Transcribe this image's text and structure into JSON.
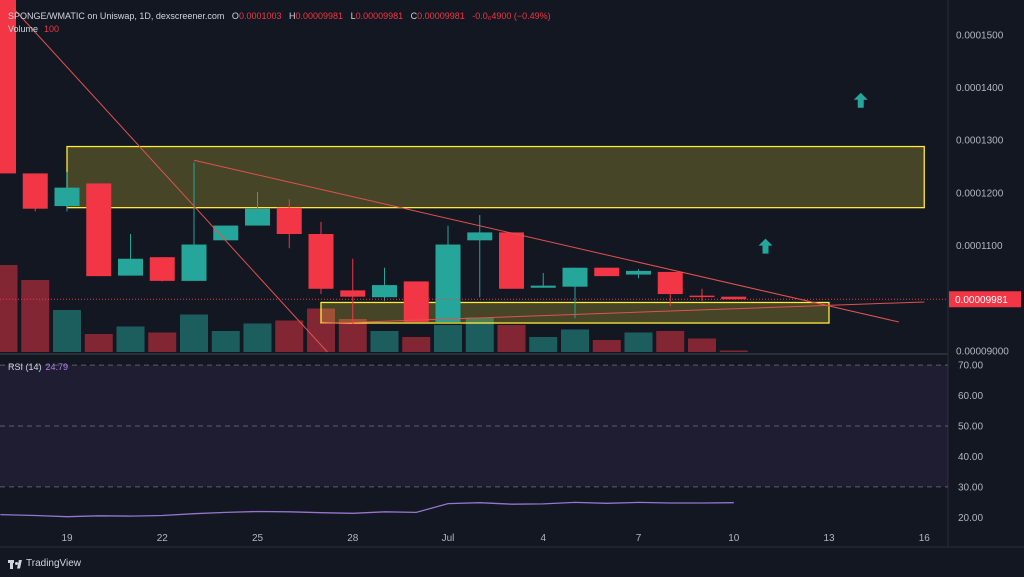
{
  "header": {
    "pair": "SPONGE/WMATIC on Uniswap, 1D, dexscreener.com",
    "open_label": "O",
    "open": "0.0001003",
    "high_label": "H",
    "high": "0.00009981",
    "low_label": "L",
    "low": "0.00009981",
    "close_label": "C",
    "close": "0.00009981",
    "change": "-0.0₆4900 (−0.49%)"
  },
  "volume": {
    "label": "Volume",
    "value": "100"
  },
  "rsi": {
    "label": "RSI (14)",
    "value": "24.79"
  },
  "branding": {
    "text": "TradingView"
  },
  "colors": {
    "up": "#26a69a",
    "down": "#f23645",
    "zone": "#ffeb3b",
    "trendline": "#e0524e",
    "rsi_line": "#9575cd",
    "background": "#131722"
  },
  "chart_data": [
    {
      "type": "candlestick",
      "x_ticks": [
        "19",
        "22",
        "25",
        "28",
        "Jul",
        "4",
        "7",
        "10",
        "13",
        "16"
      ],
      "x_tick_days": [
        19,
        22,
        25,
        28,
        31,
        34,
        37,
        40,
        43,
        46
      ],
      "y_ticks": [
        "0.0001500",
        "0.0001400",
        "0.0001300",
        "0.0001200",
        "0.0001100",
        "0.00009000"
      ],
      "y_tick_values": [
        0.00015,
        0.00014,
        0.00013,
        0.00012,
        0.00011,
        9e-05
      ],
      "ylim": [
        8.98e-05,
        0.0001551
      ],
      "last_price_label": "0.00009981",
      "last_price": 9.981e-05,
      "candles": [
        {
          "day": 17,
          "o": 0.00016,
          "h": 0.00016,
          "l": 0.0001237,
          "c": 0.0001237
        },
        {
          "day": 18,
          "o": 0.0001237,
          "h": 0.0001237,
          "l": 0.0001165,
          "c": 0.000117
        },
        {
          "day": 19,
          "o": 0.0001175,
          "h": 0.000124,
          "l": 0.0001165,
          "c": 0.000121
        },
        {
          "day": 20,
          "o": 0.0001218,
          "h": 0.0001218,
          "l": 0.0001042,
          "c": 0.0001042
        },
        {
          "day": 21,
          "o": 0.0001043,
          "h": 0.0001122,
          "l": 0.0001043,
          "c": 0.0001075
        },
        {
          "day": 22,
          "o": 0.0001078,
          "h": 0.0001078,
          "l": 0.0001032,
          "c": 0.0001033
        },
        {
          "day": 23,
          "o": 0.0001033,
          "h": 0.0001258,
          "l": 0.0001033,
          "c": 0.0001102
        },
        {
          "day": 24,
          "o": 0.000111,
          "h": 0.0001138,
          "l": 0.000111,
          "c": 0.0001138
        },
        {
          "day": 25,
          "o": 0.0001138,
          "h": 0.0001202,
          "l": 0.0001138,
          "c": 0.000117
        },
        {
          "day": 26,
          "o": 0.0001172,
          "h": 0.0001188,
          "l": 0.0001095,
          "c": 0.0001122
        },
        {
          "day": 27,
          "o": 0.0001122,
          "h": 0.0001145,
          "l": 0.0001008,
          "c": 0.0001018
        },
        {
          "day": 28,
          "o": 0.0001015,
          "h": 0.0001075,
          "l": 9.51e-05,
          "c": 0.0001003
        },
        {
          "day": 29,
          "o": 0.0001002,
          "h": 0.0001058,
          "l": 9.95e-05,
          "c": 0.0001025
        },
        {
          "day": 30,
          "o": 0.0001032,
          "h": 0.0001032,
          "l": 9.55e-05,
          "c": 9.55e-05
        },
        {
          "day": 31,
          "o": 9.55e-05,
          "h": 0.0001138,
          "l": 9.55e-05,
          "c": 0.0001102
        },
        {
          "day": 32,
          "o": 0.000111,
          "h": 0.0001158,
          "l": 0.0001002,
          "c": 0.0001125
        },
        {
          "day": 33,
          "o": 0.0001125,
          "h": 0.0001125,
          "l": 0.0001018,
          "c": 0.0001018
        },
        {
          "day": 34,
          "o": 0.000102,
          "h": 0.0001048,
          "l": 0.000102,
          "c": 0.0001024
        },
        {
          "day": 35,
          "o": 0.0001022,
          "h": 0.0001058,
          "l": 9.62e-05,
          "c": 0.0001058
        },
        {
          "day": 36,
          "o": 0.0001058,
          "h": 0.0001058,
          "l": 0.0001042,
          "c": 0.0001042
        },
        {
          "day": 37,
          "o": 0.0001045,
          "h": 0.0001055,
          "l": 0.0001038,
          "c": 0.0001052
        },
        {
          "day": 38,
          "o": 0.000105,
          "h": 0.000105,
          "l": 9.85e-05,
          "c": 0.0001008
        },
        {
          "day": 39,
          "o": 0.0001005,
          "h": 0.0001018,
          "l": 9.95e-05,
          "c": 0.0001003
        },
        {
          "day": 40,
          "o": 0.0001003,
          "h": 0.0001003,
          "l": 9.981e-05,
          "c": 9.981e-05
        }
      ],
      "volume": [
        {
          "day": 17,
          "v": 0.58,
          "up": false
        },
        {
          "day": 18,
          "v": 0.48,
          "up": false
        },
        {
          "day": 19,
          "v": 0.28,
          "up": true
        },
        {
          "day": 20,
          "v": 0.12,
          "up": false
        },
        {
          "day": 21,
          "v": 0.17,
          "up": true
        },
        {
          "day": 22,
          "v": 0.13,
          "up": false
        },
        {
          "day": 23,
          "v": 0.25,
          "up": true
        },
        {
          "day": 24,
          "v": 0.14,
          "up": true
        },
        {
          "day": 25,
          "v": 0.19,
          "up": true
        },
        {
          "day": 26,
          "v": 0.21,
          "up": false
        },
        {
          "day": 27,
          "v": 0.29,
          "up": false
        },
        {
          "day": 28,
          "v": 0.22,
          "up": false
        },
        {
          "day": 29,
          "v": 0.14,
          "up": true
        },
        {
          "day": 30,
          "v": 0.1,
          "up": false
        },
        {
          "day": 31,
          "v": 0.18,
          "up": true
        },
        {
          "day": 32,
          "v": 0.23,
          "up": true
        },
        {
          "day": 33,
          "v": 0.18,
          "up": false
        },
        {
          "day": 34,
          "v": 0.1,
          "up": true
        },
        {
          "day": 35,
          "v": 0.15,
          "up": true
        },
        {
          "day": 36,
          "v": 0.08,
          "up": false
        },
        {
          "day": 37,
          "v": 0.13,
          "up": true
        },
        {
          "day": 38,
          "v": 0.14,
          "up": false
        },
        {
          "day": 39,
          "v": 0.09,
          "up": false
        },
        {
          "day": 40,
          "v": 0.01,
          "up": false
        }
      ],
      "zones": [
        {
          "name": "resistance",
          "day_start": 19,
          "day_end": 46,
          "price_low": 0.0001172,
          "price_high": 0.0001288
        },
        {
          "name": "support",
          "day_start": 27,
          "day_end": 43,
          "price_low": 9.53e-05,
          "price_high": 9.92e-05
        }
      ],
      "trendlines": [
        {
          "from": [
            17.3,
            0.0001551
          ],
          "to": [
            27.2,
            8.98e-05
          ]
        },
        {
          "from": [
            23,
            0.0001262
          ],
          "to": [
            45.2,
            9.55e-05
          ]
        },
        {
          "from": [
            27,
            9.52e-05
          ],
          "to": [
            46,
            9.93e-05
          ]
        }
      ],
      "arrows": [
        {
          "day": 44,
          "price": 0.0001375
        },
        {
          "day": 41,
          "price": 0.0001098
        }
      ]
    },
    {
      "type": "line",
      "name": "RSI (14)",
      "y_ticks": [
        "70.00",
        "60.00",
        "50.00",
        "40.00",
        "30.00",
        "20.00"
      ],
      "y_tick_values": [
        70,
        60,
        50,
        40,
        30,
        20
      ],
      "ylim": [
        15.5,
        73
      ],
      "band": [
        30,
        70
      ],
      "levels": [
        70,
        50,
        30
      ],
      "points": [
        [
          16.9,
          20.9
        ],
        [
          18,
          20.6
        ],
        [
          19,
          20.2
        ],
        [
          20,
          20.5
        ],
        [
          21,
          20.4
        ],
        [
          22,
          20.6
        ],
        [
          23,
          21.2
        ],
        [
          24,
          21.6
        ],
        [
          25,
          21.9
        ],
        [
          26,
          21.8
        ],
        [
          27,
          21.5
        ],
        [
          28,
          21.3
        ],
        [
          29,
          21.8
        ],
        [
          30,
          21.6
        ],
        [
          31,
          24.5
        ],
        [
          32,
          24.8
        ],
        [
          33,
          24.3
        ],
        [
          34,
          24.4
        ],
        [
          35,
          24.9
        ],
        [
          36,
          24.6
        ],
        [
          37,
          24.9
        ],
        [
          38,
          24.7
        ],
        [
          39,
          24.7
        ],
        [
          40,
          24.79
        ]
      ]
    }
  ]
}
